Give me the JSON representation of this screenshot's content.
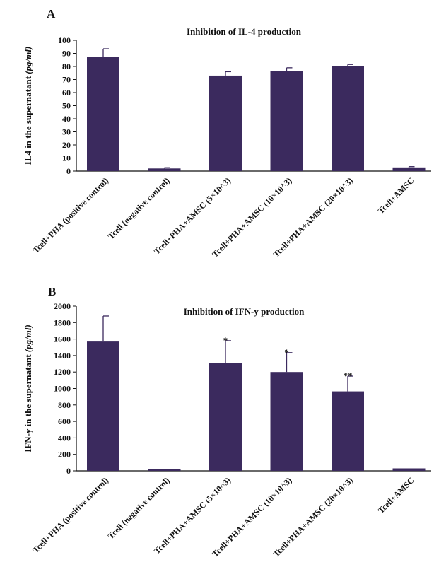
{
  "colors": {
    "bar": "#3b2a5e",
    "axis": "#111111"
  },
  "chart_data": [
    {
      "panel": "A",
      "type": "bar",
      "title": "Inhibition of IL-4 production",
      "ylabel": "IL4 in the supernatant",
      "ylabel_unit": "(pg/ml)",
      "ylim": [
        0,
        100
      ],
      "yticks": [
        0,
        10,
        20,
        30,
        40,
        50,
        60,
        70,
        80,
        90,
        100
      ],
      "categories": [
        "Tcell+PHA (positive control)",
        "Tcell (negative control)",
        "Tcell+PHA+AMSC (5×10^3)",
        "Tcell+PHA+AMSC (10×10^3)",
        "Tcell+PHA+AMSC (20×10^3)",
        "Tcell+AMSC"
      ],
      "values": [
        87.5,
        2,
        73,
        76.5,
        80,
        2.8
      ],
      "errors": [
        6,
        0.6,
        3,
        2.5,
        1.5,
        0.6
      ],
      "annotations": [
        "",
        "",
        "",
        "",
        "",
        ""
      ]
    },
    {
      "panel": "B",
      "type": "bar",
      "title": "Inhibition of IFN-y production",
      "ylabel": "IFN-y in the supernatant",
      "ylabel_unit": "(pg/ml)",
      "ylim": [
        0,
        2000
      ],
      "yticks": [
        0,
        200,
        400,
        600,
        800,
        1000,
        1200,
        1400,
        1600,
        1800,
        2000
      ],
      "categories": [
        "Tcell+PHA (positive control)",
        "Tcell (negative control)",
        "Tcell+PHA+AMSC (5×10^3)",
        "Tcell+PHA+AMSC (10×10^3)",
        "Tcell+PHA+AMSC (20×10^3)",
        "Tcell+AMSC"
      ],
      "values": [
        1570,
        20,
        1310,
        1200,
        965,
        30
      ],
      "errors": [
        310,
        0,
        270,
        235,
        185,
        0
      ],
      "annotations": [
        "",
        "",
        "*",
        "*",
        "**",
        ""
      ]
    }
  ]
}
